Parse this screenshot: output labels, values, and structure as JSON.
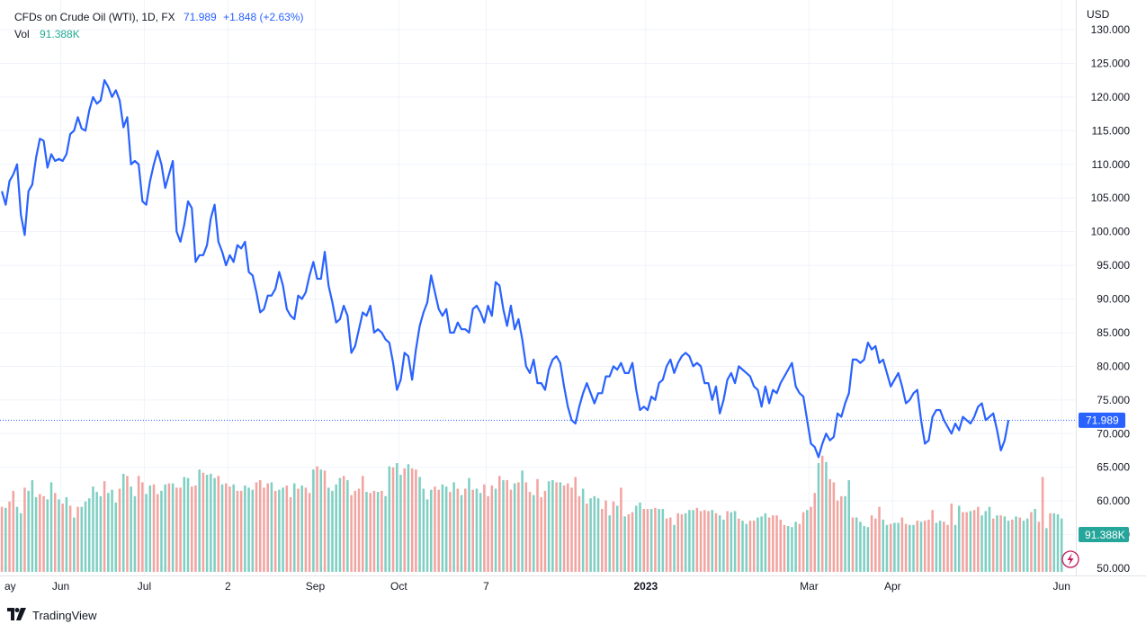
{
  "legend": {
    "title": "CFDs on Crude Oil (WTI), 1D, FX",
    "last": "71.989",
    "change": "+1.848 (+2.63%)",
    "vol_label": "Vol",
    "vol_value": "91.388K"
  },
  "footer": {
    "brand": "TradingView"
  },
  "colors": {
    "line": "#2962ff",
    "vol_up": "#7fcfc3",
    "vol_down": "#f2a4a0",
    "grid": "#f0f3fa",
    "price_badge": "#2962ff",
    "vol_badge": "#26a69a",
    "marker": "#c2185b"
  },
  "icons": {
    "marker": "lightning-marker-icon",
    "logo": "tradingview-logo-icon"
  },
  "chart_data": {
    "type": "line",
    "currency_label": "USD",
    "ylim": [
      50,
      130
    ],
    "y_ticks": [
      "130.000",
      "125.000",
      "120.000",
      "115.000",
      "110.000",
      "105.000",
      "100.000",
      "95.000",
      "90.000",
      "85.000",
      "80.000",
      "75.000",
      "70.000",
      "65.000",
      "60.000",
      "55.000",
      "50.000"
    ],
    "x_ticks": [
      {
        "label": "ay",
        "x": 0,
        "bold": false
      },
      {
        "label": "Jun",
        "x": 15.5,
        "bold": false
      },
      {
        "label": "Jul",
        "x": 37.5,
        "bold": false
      },
      {
        "label": "2",
        "x": 59.5,
        "bold": false
      },
      {
        "label": "Sep",
        "x": 82.5,
        "bold": false
      },
      {
        "label": "Oct",
        "x": 104.5,
        "bold": false
      },
      {
        "label": "7",
        "x": 127.5,
        "bold": false
      },
      {
        "label": "2023",
        "x": 169.5,
        "bold": true
      },
      {
        "label": "Mar",
        "x": 212.5,
        "bold": false
      },
      {
        "label": "Apr",
        "x": 234.5,
        "bold": false
      },
      {
        "label": "Jun",
        "x": 279,
        "bold": false
      }
    ],
    "x_range": [
      -0.5,
      282.5
    ],
    "last_price_value": 71.989,
    "last_price_label": "71.989",
    "last_vol_label": "91.388K",
    "vol_axis_max": 140,
    "price_x": [
      0,
      1,
      2,
      3,
      4,
      5,
      6,
      7,
      8,
      9,
      10,
      11,
      12,
      13,
      14,
      15,
      16,
      17,
      18,
      19,
      20,
      21,
      22,
      23,
      24,
      25,
      26,
      27,
      28,
      29,
      30,
      31,
      32,
      33,
      34,
      35,
      36,
      37,
      38,
      39,
      40,
      41,
      42,
      43,
      44,
      45,
      46,
      47,
      48,
      49,
      50,
      51,
      52,
      53,
      54,
      55,
      56,
      57,
      58,
      59,
      60,
      61,
      62,
      63,
      64,
      65,
      66,
      67,
      68,
      69,
      70,
      71,
      72,
      73,
      74,
      75,
      76,
      77,
      78,
      79,
      80,
      81,
      82,
      83,
      84,
      85,
      86,
      87,
      88,
      89,
      90,
      91,
      92,
      93,
      94,
      95,
      96,
      97,
      98,
      99,
      100,
      101,
      102,
      103,
      104,
      105,
      106,
      107,
      108,
      109,
      110,
      111,
      112,
      113,
      114,
      115,
      116,
      117,
      118,
      119,
      120,
      121,
      122,
      123,
      124,
      125,
      126,
      127,
      128,
      129,
      130,
      131,
      132,
      133,
      134,
      135,
      136,
      137,
      138,
      139,
      140,
      141,
      142,
      143,
      144,
      145,
      146,
      147,
      148,
      149,
      150,
      151,
      152,
      153,
      154,
      155,
      156,
      157,
      158,
      159,
      160,
      161,
      162,
      163,
      164,
      165,
      166,
      167,
      168,
      169,
      170,
      171,
      172,
      173,
      174,
      175,
      176,
      177,
      178,
      179,
      180,
      181,
      182,
      183,
      184,
      185,
      186,
      187,
      188,
      189,
      190,
      191,
      192,
      193,
      194,
      195,
      196,
      197,
      198,
      199,
      200,
      201,
      202,
      203,
      204,
      205,
      206,
      207,
      208,
      209,
      210,
      211,
      212,
      213,
      214,
      215,
      216,
      217,
      218,
      219,
      220,
      221,
      222,
      223,
      224,
      225,
      226,
      227,
      228,
      229,
      230,
      231,
      232,
      233,
      234,
      235,
      236,
      237,
      238,
      239,
      240,
      241,
      242,
      243,
      244,
      245,
      246,
      247,
      248,
      249,
      250,
      251,
      252,
      253,
      254,
      255,
      256,
      257,
      258,
      259,
      260,
      261,
      262,
      263,
      264,
      265,
      266,
      267,
      268,
      269,
      270,
      271,
      272,
      273,
      274,
      275,
      276,
      277,
      278,
      279,
      280,
      281,
      282
    ],
    "price_values": [
      106.0,
      104.0,
      107.5,
      108.5,
      110.0,
      102.5,
      99.5,
      106.0,
      107.0,
      111.0,
      113.8,
      113.5,
      109.5,
      111.5,
      110.5,
      110.8,
      110.5,
      111.5,
      114.5,
      115.0,
      117.0,
      115.3,
      115.0,
      118.0,
      120.0,
      119.0,
      119.5,
      122.5,
      121.5,
      120.0,
      121.0,
      119.5,
      115.5,
      117.0,
      110.0,
      110.5,
      110.0,
      104.5,
      104.0,
      107.5,
      110.0,
      112.0,
      110.0,
      106.5,
      108.5,
      110.5,
      100.0,
      98.5,
      101.0,
      104.5,
      103.5,
      95.5,
      96.5,
      96.5,
      98.0,
      102.0,
      104.0,
      98.5,
      97.0,
      95.0,
      96.5,
      95.5,
      98.0,
      97.5,
      98.5,
      94.0,
      93.5,
      91.0,
      88.0,
      88.5,
      90.5,
      90.5,
      91.5,
      94.0,
      92.0,
      88.5,
      87.5,
      87.0,
      90.5,
      90.0,
      91.0,
      93.5,
      95.5,
      93.0,
      93.0,
      97.0,
      92.0,
      89.5,
      86.5,
      87.0,
      89.0,
      87.5,
      82.0,
      83.0,
      85.5,
      88.0,
      87.5,
      89.0,
      85.0,
      85.5,
      85.0,
      84.0,
      83.5,
      80.5,
      76.5,
      78.0,
      82.0,
      81.5,
      78.0,
      82.5,
      86.0,
      88.0,
      89.5,
      93.5,
      91.0,
      88.5,
      87.5,
      88.5,
      85.0,
      85.0,
      86.5,
      85.5,
      85.5,
      85.0,
      88.5,
      89.0,
      88.0,
      86.5,
      89.0,
      87.5,
      92.5,
      92.0,
      88.5,
      86.0,
      89.0,
      85.5,
      87.0,
      84.0,
      80.0,
      79.0,
      81.0,
      77.5,
      77.5,
      76.5,
      79.5,
      81.0,
      81.5,
      80.5,
      77.0,
      74.0,
      72.0,
      71.5,
      74.0,
      76.0,
      77.5,
      76.0,
      74.5,
      76.0,
      76.0,
      78.5,
      78.5,
      80.0,
      79.5,
      80.5,
      79.0,
      79.0,
      80.5,
      76.5,
      73.5,
      74.0,
      73.5,
      75.5,
      75.0,
      77.5,
      78.0,
      80.0,
      81.0,
      79.0,
      80.5,
      81.5,
      82.0,
      81.5,
      80.0,
      80.5,
      80.0,
      77.5,
      77.5,
      75.0,
      77.0,
      73.0,
      75.0,
      78.0,
      79.0,
      77.5,
      80.0,
      79.5,
      79.0,
      78.5,
      77.0,
      76.5,
      74.0,
      77.0,
      74.5,
      76.5,
      76.0,
      77.5,
      78.5,
      79.5,
      80.5,
      77.0,
      76.0,
      75.5,
      72.0,
      68.5,
      68.0,
      66.5,
      68.5,
      70.0,
      69.0,
      69.5,
      73.0,
      72.5,
      74.5,
      76.0,
      81.0,
      81.0,
      80.5,
      81.0,
      83.5,
      82.5,
      83.0,
      80.5,
      81.0,
      79.0,
      77.0,
      78.0,
      79.0,
      77.0,
      74.5,
      75.0,
      76.0,
      76.5,
      72.0,
      68.5,
      69.0,
      72.5,
      73.5,
      73.5,
      72.0,
      71.0,
      70.0,
      71.5,
      70.5,
      72.5,
      72.0,
      71.5,
      72.5,
      74.0,
      74.5,
      72.0,
      72.5,
      73.0,
      70.5,
      67.5,
      69.0,
      72.0
    ],
    "volume_values": [
      61,
      60,
      66,
      76,
      61,
      55,
      79,
      76,
      86,
      70,
      73,
      71,
      68,
      84,
      74,
      68,
      64,
      70,
      62,
      51,
      61,
      61,
      66,
      69,
      80,
      75,
      71,
      85,
      74,
      77,
      65,
      78,
      92,
      90,
      80,
      71,
      90,
      84,
      73,
      81,
      82,
      73,
      76,
      82,
      83,
      83,
      79,
      79,
      89,
      88,
      80,
      81,
      96,
      93,
      91,
      92,
      88,
      90,
      82,
      83,
      80,
      82,
      76,
      76,
      81,
      79,
      77,
      84,
      86,
      79,
      83,
      84,
      76,
      77,
      79,
      81,
      70,
      83,
      78,
      81,
      79,
      74,
      96,
      99,
      96,
      95,
      79,
      76,
      82,
      88,
      90,
      86,
      72,
      76,
      78,
      90,
      75,
      74,
      76,
      75,
      76,
      71,
      99,
      98,
      102,
      91,
      97,
      101,
      97,
      96,
      89,
      78,
      68,
      77,
      80,
      77,
      82,
      80,
      75,
      84,
      78,
      72,
      78,
      88,
      77,
      78,
      74,
      82,
      71,
      81,
      78,
      90,
      86,
      86,
      77,
      83,
      84,
      95,
      84,
      75,
      72,
      87,
      70,
      76,
      85,
      86,
      84,
      84,
      81,
      83,
      79,
      89,
      71,
      78,
      64,
      69,
      71,
      69,
      59,
      67,
      53,
      66,
      62,
      79,
      52,
      54,
      56,
      62,
      65,
      59,
      59,
      59,
      60,
      59,
      59,
      50,
      51,
      44,
      55,
      54,
      55,
      58,
      58,
      60,
      57,
      58,
      57,
      58,
      55,
      53,
      49,
      57,
      56,
      57,
      50,
      48,
      45,
      48,
      48,
      51,
      52,
      55,
      51,
      53,
      53,
      49,
      44,
      43,
      42,
      47,
      45,
      56,
      58,
      61,
      74,
      102,
      109,
      103,
      87,
      84,
      67,
      71,
      71,
      86,
      51,
      51,
      47,
      43,
      42,
      53,
      50,
      61,
      49,
      44,
      45,
      46,
      46,
      51,
      45,
      44,
      44,
      48,
      47,
      48,
      49,
      58,
      46,
      48,
      47,
      44,
      64,
      44,
      62,
      56,
      56,
      57,
      58,
      61,
      53,
      57,
      61,
      50,
      53,
      53,
      52,
      48,
      49,
      52,
      51,
      48,
      50,
      56,
      59,
      47,
      89,
      41,
      55,
      55,
      54,
      50
    ],
    "volume_up": [
      false,
      true,
      false,
      false,
      true,
      true,
      false,
      true,
      true,
      true,
      false,
      false,
      true,
      true,
      false,
      true,
      false,
      true,
      false,
      true,
      false,
      true,
      true,
      true,
      true,
      true,
      true,
      false,
      true,
      true,
      true,
      false,
      true,
      false,
      true,
      true,
      false,
      false,
      true,
      true,
      false,
      false,
      true,
      true,
      false,
      true,
      false,
      false,
      true,
      true,
      false,
      false,
      true,
      false,
      true,
      true,
      true,
      false,
      true,
      false,
      false,
      true,
      false,
      false,
      true,
      true,
      true,
      false,
      false,
      false,
      false,
      true,
      false,
      true,
      true,
      false,
      false,
      true,
      false,
      true,
      false,
      false,
      true,
      false,
      true,
      false,
      true,
      true,
      true,
      true,
      false,
      true,
      false,
      false,
      false,
      false,
      true,
      false,
      false,
      true,
      false,
      true,
      true,
      false,
      true,
      true,
      false,
      true,
      false,
      false,
      true,
      true,
      true,
      true,
      false,
      false,
      true,
      true,
      false,
      true,
      false,
      true,
      false,
      true,
      false,
      true,
      true,
      false,
      false,
      false,
      true,
      false,
      true,
      false,
      false,
      true,
      false,
      true,
      false,
      false,
      true,
      false,
      false,
      false,
      true,
      true,
      false,
      true,
      false,
      false,
      false,
      false,
      false,
      true,
      false,
      true,
      true,
      true,
      false,
      false,
      true,
      false,
      true,
      false,
      true,
      false,
      false,
      true,
      true,
      false,
      false,
      true,
      false,
      true,
      true,
      false,
      false,
      true,
      false,
      false,
      true,
      true,
      true,
      false,
      false,
      false,
      false,
      true,
      false,
      true,
      true,
      false,
      true,
      true,
      false,
      true,
      true,
      false,
      false,
      true,
      true,
      true,
      false,
      false,
      false,
      false,
      false,
      true,
      true,
      true,
      false,
      false,
      true,
      false,
      false,
      true,
      false,
      true,
      false,
      false,
      false,
      false,
      true,
      true,
      false,
      true,
      true,
      true,
      true,
      false,
      false,
      false,
      true,
      true,
      false,
      true,
      true,
      false,
      false,
      true,
      true,
      false,
      true,
      false,
      false,
      false,
      true,
      true,
      false,
      false,
      false,
      true,
      true,
      false,
      false,
      true,
      false,
      false,
      true,
      true,
      true,
      false,
      true,
      false,
      true,
      true,
      false,
      true,
      false,
      true,
      true,
      false,
      true,
      false,
      false,
      true,
      false,
      true,
      true,
      true
    ]
  }
}
